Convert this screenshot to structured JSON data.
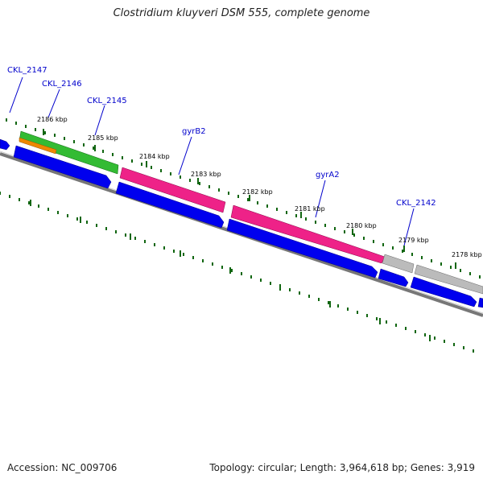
{
  "title": "Clostridium kluyveri DSM 555, complete genome",
  "footer": {
    "accession": "Accession: NC_009706",
    "summary": "Topology: circular; Length: 3,964,618 bp; Genes: 3,919"
  },
  "colors": {
    "cds": "#0000ee",
    "gyr_genes": "#ee2288",
    "ckl_2145": "#33bb33",
    "ckl_2146": "#ee8800",
    "ckl_2142": "#bbbbbb",
    "backbone": "#777777",
    "ticks": "#116611",
    "label_lines": "#0000cc"
  },
  "tick_labels": [
    "2186 kbp",
    "2185 kbp",
    "2184 kbp",
    "2183 kbp",
    "2182 kbp",
    "2181 kbp",
    "2180 kbp",
    "2179 kbp",
    "2178 kbp"
  ],
  "gene_labels": [
    "CKL_2147",
    "CKL_2146",
    "CKL_2145",
    "gyrB2",
    "gyrA2",
    "CKL_2142"
  ]
}
